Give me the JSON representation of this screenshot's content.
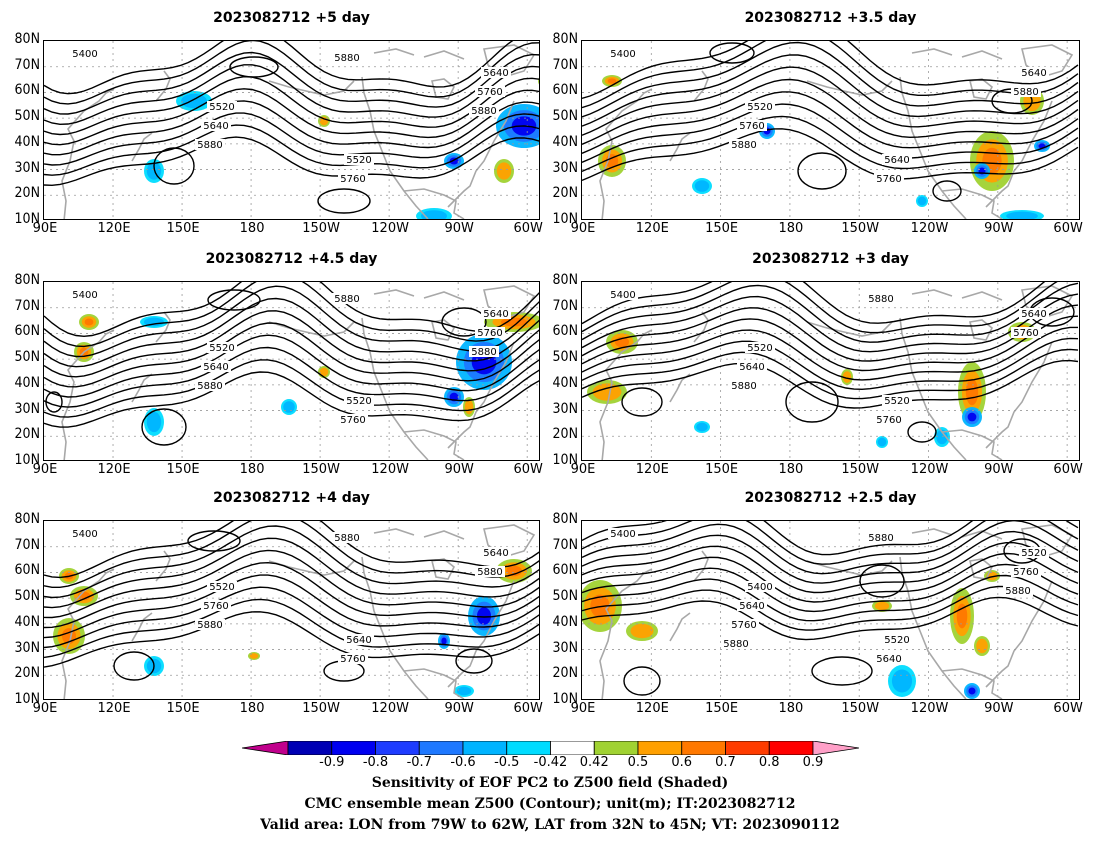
{
  "panels": [
    {
      "title": "2023082712  +5 day",
      "contour_labels": [
        "5400",
        "5520",
        "5520",
        "5640",
        "5640",
        "5760",
        "5760",
        "5880",
        "5880",
        "5880"
      ]
    },
    {
      "title": "2023082712  +3.5 day",
      "contour_labels": [
        "5400",
        "5520",
        "5640",
        "5640",
        "5760",
        "5760",
        "5880",
        "5880"
      ]
    },
    {
      "title": "2023082712  +4.5 day",
      "contour_labels": [
        "5400",
        "5520",
        "5520",
        "5640",
        "5640",
        "5760",
        "5760",
        "5880",
        "5880",
        "5880"
      ]
    },
    {
      "title": "2023082712  +3  day",
      "contour_labels": [
        "5400",
        "5520",
        "5520",
        "5640",
        "5640",
        "5760",
        "5760",
        "5880",
        "5880"
      ]
    },
    {
      "title": "2023082712  +4  day",
      "contour_labels": [
        "5400",
        "5520",
        "5640",
        "5640",
        "5760",
        "5760",
        "5880",
        "5880",
        "5880"
      ]
    },
    {
      "title": "2023082712  +2.5 day",
      "contour_labels": [
        "5400",
        "5400",
        "5520",
        "5520",
        "5640",
        "5640",
        "5760",
        "5760",
        "5880",
        "5880",
        "5880"
      ]
    }
  ],
  "lat_labels": [
    "80N",
    "70N",
    "60N",
    "50N",
    "40N",
    "30N",
    "20N",
    "10N"
  ],
  "lon_labels": [
    "90E",
    "120E",
    "150E",
    "180",
    "150W",
    "120W",
    "90W",
    "60W"
  ],
  "colorbar": {
    "labels": [
      "-0.9",
      "-0.8",
      "-0.7",
      "-0.6",
      "-0.5",
      "-0.42",
      "0.42",
      "0.5",
      "0.6",
      "0.7",
      "0.8",
      "0.9"
    ],
    "colors": {
      "under": "#c0008c",
      "bins": [
        "#0000b4",
        "#0000f0",
        "#1e3cff",
        "#1e78ff",
        "#00b4ff",
        "#00dcff",
        "#ffffff",
        "#a0d232",
        "#ffa000",
        "#ff7800",
        "#ff3c00",
        "#ff0000"
      ],
      "over": "#ffa0c8"
    }
  },
  "caption": {
    "line1": "Sensitivity of EOF PC2 to Z500 field (Shaded)",
    "line2": "CMC ensemble mean Z500 (Contour); unit(m); IT:2023082712",
    "line3": "Valid area: LON from 79W to 62W, LAT from 32N to 45N; VT: 2023090112"
  }
}
